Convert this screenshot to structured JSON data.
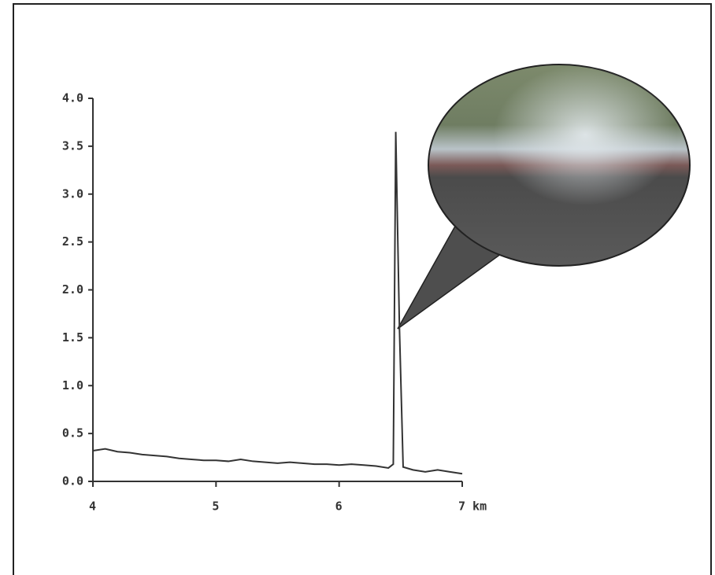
{
  "chart_data": {
    "type": "line",
    "x": [
      4.0,
      4.1,
      4.2,
      4.3,
      4.4,
      4.5,
      4.6,
      4.7,
      4.8,
      4.9,
      5.0,
      5.1,
      5.2,
      5.3,
      5.4,
      5.5,
      5.6,
      5.7,
      5.8,
      5.9,
      6.0,
      6.1,
      6.2,
      6.3,
      6.4,
      6.44,
      6.46,
      6.49,
      6.52,
      6.6,
      6.7,
      6.8,
      6.9,
      7.0
    ],
    "series": [
      {
        "color": "#333333",
        "values": [
          0.32,
          0.34,
          0.31,
          0.3,
          0.28,
          0.27,
          0.26,
          0.24,
          0.23,
          0.22,
          0.22,
          0.21,
          0.23,
          0.21,
          0.2,
          0.19,
          0.2,
          0.19,
          0.18,
          0.18,
          0.17,
          0.18,
          0.17,
          0.16,
          0.14,
          0.18,
          3.65,
          1.6,
          0.15,
          0.12,
          0.1,
          0.12,
          0.1,
          0.08
        ]
      }
    ],
    "xlim": [
      4,
      7
    ],
    "xticks": [
      4,
      5,
      6,
      {
        "value": 7,
        "label": "7 km"
      }
    ],
    "ylim": [
      0,
      4
    ],
    "yticks": [
      {
        "value": 0,
        "label": "0.0"
      },
      {
        "value": 0.5,
        "label": "0.5"
      },
      {
        "value": 1,
        "label": "1.0"
      },
      {
        "value": 1.5,
        "label": "1.5"
      },
      {
        "value": 2,
        "label": "2.0"
      },
      {
        "value": 2.5,
        "label": "2.5"
      },
      {
        "value": 3,
        "label": "3.0"
      },
      {
        "value": 3.5,
        "label": "3.5"
      },
      {
        "value": 4,
        "label": "4.0"
      }
    ]
  }
}
